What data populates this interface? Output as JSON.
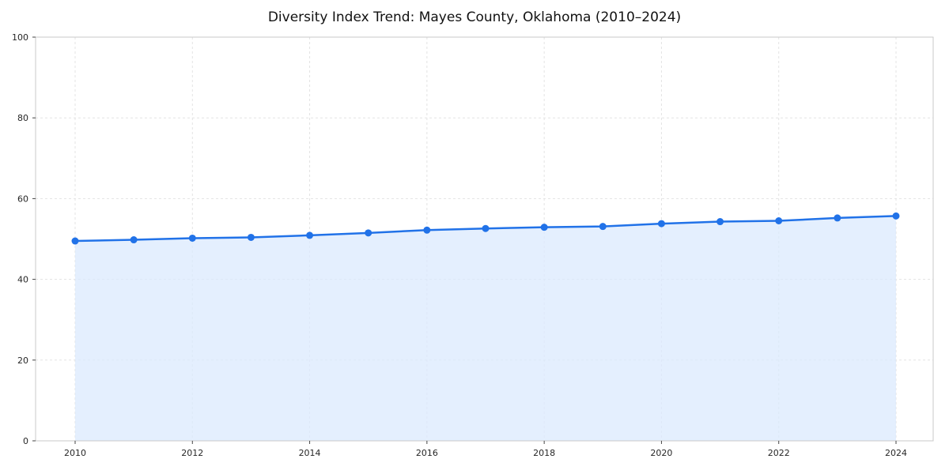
{
  "page": {
    "title": "Diversity Index Trend: Mayes County, Oklahoma (2010–2024)"
  },
  "chart_data": {
    "type": "line",
    "title": "Diversity Index Trend: Mayes County, Oklahoma (2010–2024)",
    "x": [
      2010,
      2011,
      2012,
      2013,
      2014,
      2015,
      2016,
      2017,
      2018,
      2019,
      2020,
      2021,
      2022,
      2023,
      2024
    ],
    "series": [
      {
        "name": "Diversity Index",
        "values": [
          49.5,
          49.8,
          50.2,
          50.4,
          50.9,
          51.5,
          52.2,
          52.6,
          52.9,
          53.1,
          53.8,
          54.3,
          54.5,
          55.2,
          55.7
        ]
      }
    ],
    "xticks": [
      2010,
      2012,
      2014,
      2016,
      2018,
      2020,
      2022,
      2024
    ],
    "yticks": [
      0,
      20,
      40,
      60,
      80,
      100
    ],
    "ylim": [
      0,
      100
    ],
    "xlabel": "",
    "ylabel": "",
    "grid": true,
    "grid_style": "dashed",
    "legend": "none",
    "line_color": "#2172e8",
    "fill_color": "#dbeafe",
    "marker": "circle",
    "background_color": "#ffffff",
    "gridline_color": "#e3e3e3",
    "axis_border_color": "#c9c9c9",
    "tick_label_color": "#262626"
  }
}
